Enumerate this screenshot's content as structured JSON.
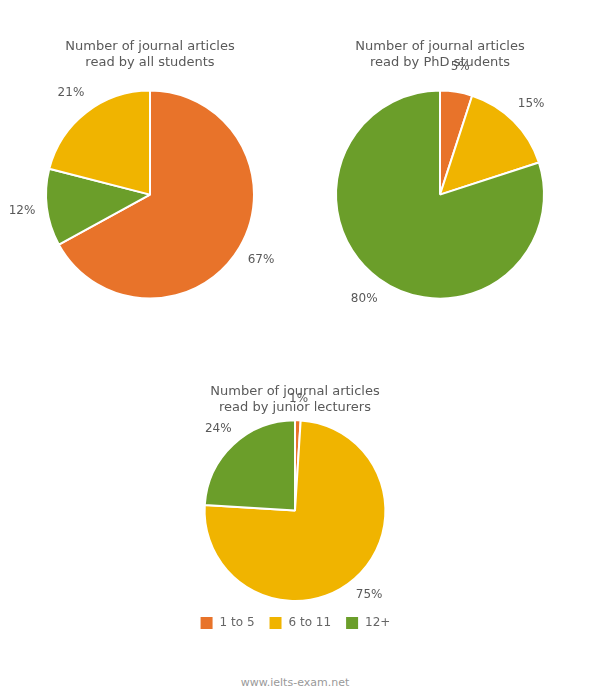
{
  "chart_data": [
    {
      "type": "pie",
      "title": "Number of journal articles\nread by all students",
      "categories": [
        "1 to 5",
        "12+",
        "6 to 11"
      ],
      "values": [
        67,
        12,
        21
      ],
      "value_labels": [
        "67%",
        "12%",
        "21%"
      ],
      "data_labels": true,
      "colors": [
        "#E8732A",
        "#6B9E2A",
        "#F0B400"
      ]
    },
    {
      "type": "pie",
      "title": "Number of journal articles\nread by PhD students",
      "categories": [
        "1 to 5",
        "6 to 11",
        "12+"
      ],
      "values": [
        5,
        15,
        80
      ],
      "value_labels": [
        "5%",
        "15%",
        "80%"
      ],
      "data_labels": true,
      "colors": [
        "#E8732A",
        "#F0B400",
        "#6B9E2A"
      ]
    },
    {
      "type": "pie",
      "title": "Number of journal articles\nread by junior lecturers",
      "categories": [
        "1 to 5",
        "6 to 11",
        "12+"
      ],
      "values": [
        1,
        75,
        24
      ],
      "value_labels": [
        "1%",
        "75%",
        "24%"
      ],
      "data_labels": true,
      "colors": [
        "#E8732A",
        "#F0B400",
        "#6B9E2A"
      ],
      "legend": "bottom",
      "annotations": [
        "www.ielts-exam.net"
      ]
    }
  ]
}
